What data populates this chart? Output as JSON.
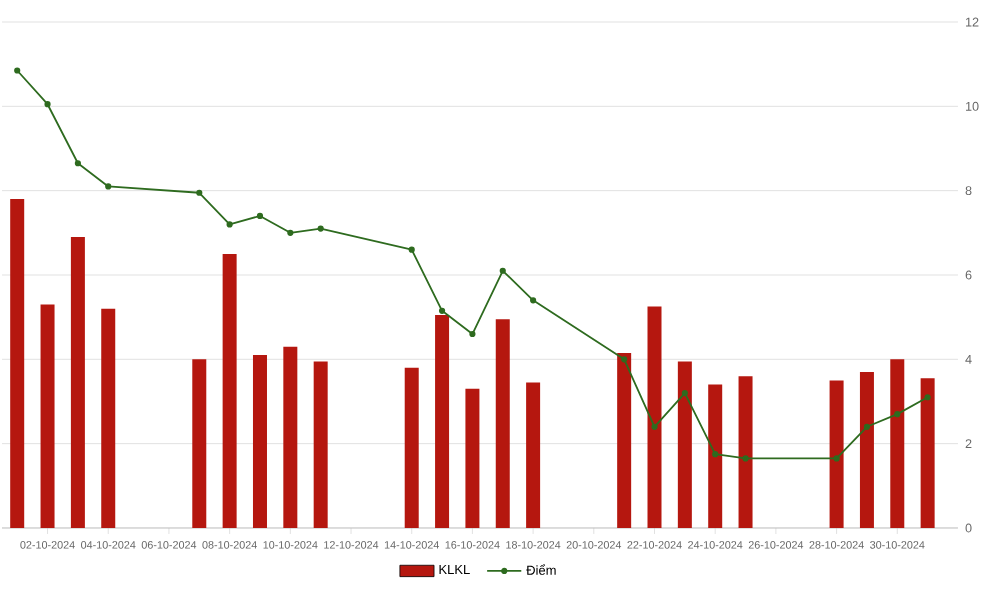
{
  "chart_data": {
    "type": "bar",
    "x": [
      "2024-10-01",
      "2024-10-02",
      "2024-10-03",
      "2024-10-04",
      "2024-10-07",
      "2024-10-08",
      "2024-10-09",
      "2024-10-10",
      "2024-10-11",
      "2024-10-14",
      "2024-10-15",
      "2024-10-16",
      "2024-10-17",
      "2024-10-18",
      "2024-10-21",
      "2024-10-22",
      "2024-10-23",
      "2024-10-24",
      "2024-10-25",
      "2024-10-28",
      "2024-10-29",
      "2024-10-30",
      "2024-10-31"
    ],
    "series": [
      {
        "name": "KLKL",
        "color": "#b5170f",
        "values": [
          7.8,
          5.3,
          6.9,
          5.2,
          4.0,
          6.5,
          4.1,
          4.3,
          3.95,
          3.8,
          5.05,
          3.3,
          4.95,
          3.45,
          4.15,
          5.25,
          3.95,
          3.4,
          3.6,
          3.5,
          3.7,
          4.0,
          3.55
        ]
      },
      {
        "name": "Điểm",
        "type": "line",
        "color": "#2e6b1f",
        "marker": "circle",
        "values": [
          10.85,
          10.05,
          8.65,
          8.1,
          7.95,
          7.2,
          7.4,
          7.0,
          7.1,
          6.6,
          5.15,
          4.6,
          6.1,
          5.4,
          4.0,
          2.4,
          3.2,
          1.75,
          1.65,
          1.65,
          2.4,
          2.7,
          3.1
        ]
      }
    ],
    "xlim": [
      "2024-09-30T12:00",
      "2024-11-01T00:00"
    ],
    "xticks": [
      {
        "value": "2024-10-02",
        "label": "02-10-2024"
      },
      {
        "value": "2024-10-04",
        "label": "04-10-2024"
      },
      {
        "value": "2024-10-06",
        "label": "06-10-2024"
      },
      {
        "value": "2024-10-08",
        "label": "08-10-2024"
      },
      {
        "value": "2024-10-10",
        "label": "10-10-2024"
      },
      {
        "value": "2024-10-12",
        "label": "12-10-2024"
      },
      {
        "value": "2024-10-14",
        "label": "14-10-2024"
      },
      {
        "value": "2024-10-16",
        "label": "16-10-2024"
      },
      {
        "value": "2024-10-18",
        "label": "18-10-2024"
      },
      {
        "value": "2024-10-20",
        "label": "20-10-2024"
      },
      {
        "value": "2024-10-22",
        "label": "22-10-2024"
      },
      {
        "value": "2024-10-24",
        "label": "24-10-2024"
      },
      {
        "value": "2024-10-26",
        "label": "26-10-2024"
      },
      {
        "value": "2024-10-28",
        "label": "28-10-2024"
      },
      {
        "value": "2024-10-30",
        "label": "30-10-2024"
      }
    ],
    "ylim": [
      0,
      12
    ],
    "yticks": [
      0,
      2,
      4,
      6,
      8,
      10,
      12
    ],
    "grid": "y",
    "legend": "bottom"
  }
}
